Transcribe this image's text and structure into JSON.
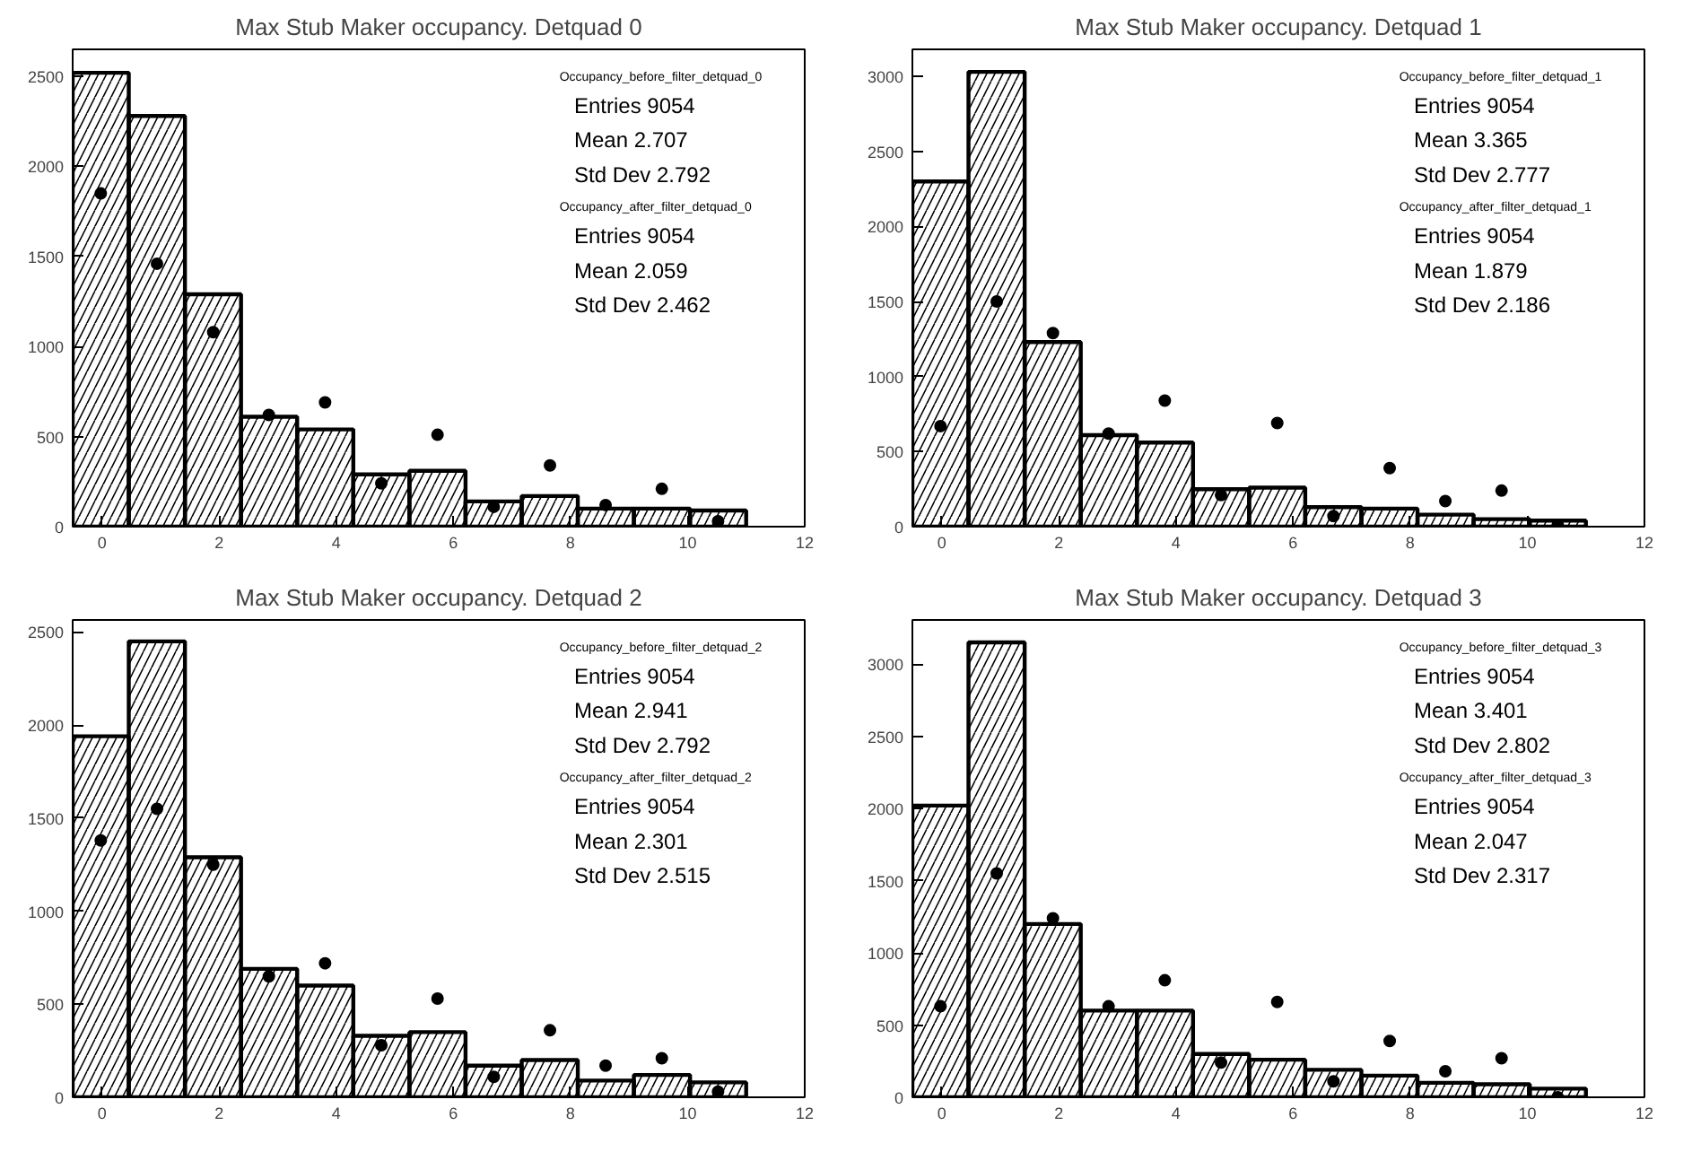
{
  "chart_data": [
    {
      "type": "histogram",
      "title": "Max Stub Maker occupancy. Detquad 0",
      "xlim": [
        -0.5,
        12
      ],
      "xticks": [
        0,
        2,
        4,
        6,
        8,
        10,
        12
      ],
      "ylim": [
        0,
        2650
      ],
      "yticks": [
        0,
        500,
        1000,
        1500,
        2000,
        2500
      ],
      "grid": false,
      "marker": "circle",
      "series": [
        {
          "type": "histogram",
          "color": "#000000",
          "bins": [
            -0.5,
            0.458,
            1.417,
            2.375,
            3.333,
            4.292,
            5.25,
            6.208,
            7.167,
            8.125,
            9.083,
            10.042,
            11.0
          ],
          "values": [
            2520,
            2280,
            1290,
            610,
            540,
            290,
            310,
            140,
            170,
            100,
            100,
            90
          ]
        },
        {
          "type": "scatter",
          "color": "#000000",
          "x": [
            -0.02,
            0.94,
            1.9,
            2.85,
            3.81,
            4.77,
            5.73,
            6.69,
            7.65,
            8.6,
            9.56,
            10.52
          ],
          "values": [
            1850,
            1460,
            1080,
            620,
            690,
            240,
            510,
            110,
            340,
            120,
            210,
            30
          ]
        }
      ],
      "annotations": [
        "Occupancy_before_filter_detquad_0",
        "Entries 9054",
        "Mean 2.707",
        "Std Dev 2.792",
        "Occupancy_after_filter_detquad_0",
        "Entries 9054",
        "Mean 2.059",
        "Std Dev 2.462"
      ]
    },
    {
      "type": "histogram",
      "title": "Max Stub Maker occupancy. Detquad 1",
      "xlim": [
        -0.5,
        12
      ],
      "xticks": [
        0,
        2,
        4,
        6,
        8,
        10,
        12
      ],
      "ylim": [
        0,
        3180
      ],
      "yticks": [
        0,
        500,
        1000,
        1500,
        2000,
        2500,
        3000
      ],
      "grid": false,
      "marker": "circle",
      "series": [
        {
          "type": "histogram",
          "color": "#000000",
          "bins": [
            -0.5,
            0.458,
            1.417,
            2.375,
            3.333,
            4.292,
            5.25,
            6.208,
            7.167,
            8.125,
            9.083,
            10.042,
            11.0
          ],
          "values": [
            2300,
            3030,
            1230,
            610,
            560,
            250,
            260,
            130,
            120,
            80,
            50,
            40
          ]
        },
        {
          "type": "scatter",
          "color": "#000000",
          "x": [
            -0.02,
            0.94,
            1.9,
            2.85,
            3.81,
            4.77,
            5.73,
            6.69,
            7.65,
            8.6,
            9.56,
            10.52
          ],
          "values": [
            670,
            1500,
            1290,
            620,
            840,
            210,
            690,
            70,
            390,
            170,
            240,
            10
          ]
        }
      ],
      "annotations": [
        "Occupancy_before_filter_detquad_1",
        "Entries 9054",
        "Mean 3.365",
        "Std Dev 2.777",
        "Occupancy_after_filter_detquad_1",
        "Entries 9054",
        "Mean 1.879",
        "Std Dev 2.186"
      ]
    },
    {
      "type": "histogram",
      "title": "Max Stub Maker occupancy. Detquad 2",
      "xlim": [
        -0.5,
        12
      ],
      "xticks": [
        0,
        2,
        4,
        6,
        8,
        10,
        12
      ],
      "ylim": [
        0,
        2565
      ],
      "yticks": [
        0,
        500,
        1000,
        1500,
        2000,
        2500
      ],
      "grid": false,
      "marker": "circle",
      "series": [
        {
          "type": "histogram",
          "color": "#000000",
          "bins": [
            -0.5,
            0.458,
            1.417,
            2.375,
            3.333,
            4.292,
            5.25,
            6.208,
            7.167,
            8.125,
            9.083,
            10.042,
            11.0
          ],
          "values": [
            1940,
            2450,
            1290,
            690,
            600,
            330,
            350,
            170,
            200,
            90,
            120,
            80
          ]
        },
        {
          "type": "scatter",
          "color": "#000000",
          "x": [
            -0.02,
            0.94,
            1.9,
            2.85,
            3.81,
            4.77,
            5.73,
            6.69,
            7.65,
            8.6,
            9.56,
            10.52
          ],
          "values": [
            1380,
            1550,
            1250,
            650,
            720,
            280,
            530,
            110,
            360,
            170,
            210,
            30
          ]
        }
      ],
      "annotations": [
        "Occupancy_before_filter_detquad_2",
        "Entries 9054",
        "Mean 2.941",
        "Std Dev 2.792",
        "Occupancy_after_filter_detquad_2",
        "Entries 9054",
        "Mean 2.301",
        "Std Dev 2.515"
      ]
    },
    {
      "type": "histogram",
      "title": "Max Stub Maker occupancy. Detquad 3",
      "xlim": [
        -0.5,
        12
      ],
      "xticks": [
        0,
        2,
        4,
        6,
        8,
        10,
        12
      ],
      "ylim": [
        0,
        3305
      ],
      "yticks": [
        0,
        500,
        1000,
        1500,
        2000,
        2500,
        3000
      ],
      "grid": false,
      "marker": "circle",
      "series": [
        {
          "type": "histogram",
          "color": "#000000",
          "bins": [
            -0.5,
            0.458,
            1.417,
            2.375,
            3.333,
            4.292,
            5.25,
            6.208,
            7.167,
            8.125,
            9.083,
            10.042,
            11.0
          ],
          "values": [
            2020,
            3150,
            1200,
            600,
            600,
            300,
            260,
            190,
            150,
            100,
            90,
            60
          ]
        },
        {
          "type": "scatter",
          "color": "#000000",
          "x": [
            -0.02,
            0.94,
            1.9,
            2.85,
            3.81,
            4.77,
            5.73,
            6.69,
            7.65,
            8.6,
            9.56,
            10.52
          ],
          "values": [
            630,
            1550,
            1240,
            630,
            810,
            240,
            660,
            110,
            390,
            180,
            270,
            0
          ]
        }
      ],
      "annotations": [
        "Occupancy_before_filter_detquad_3",
        "Entries 9054",
        "Mean 3.401",
        "Std Dev 2.802",
        "Occupancy_after_filter_detquad_3",
        "Entries 9054",
        "Mean 2.047",
        "Std Dev 2.317"
      ]
    }
  ]
}
